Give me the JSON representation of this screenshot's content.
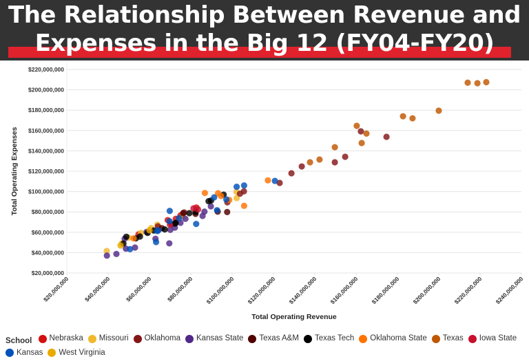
{
  "header": {
    "title_line1": "The Relationship Between Revenue and",
    "title_line2": "Expenses in the Big 12 (FY04-FY20)"
  },
  "chart_data": {
    "type": "scatter",
    "xlabel": "Total Operating Revenue",
    "ylabel": "Total Operating Expenses",
    "xlim": [
      20000000,
      240000000
    ],
    "ylim": [
      20000000,
      220000000
    ],
    "grid": "horizontal",
    "legend_position": "bottom",
    "x_ticks": [
      "$20,000,000",
      "$40,000,000",
      "$60,000,000",
      "$80,000,000",
      "$100,000,000",
      "$120,000,000",
      "$140,000,000",
      "$160,000,000",
      "$180,000,000",
      "$200,000,000",
      "$220,000,000",
      "$240,000,000"
    ],
    "y_ticks": [
      "$20,000,000",
      "$40,000,000",
      "$60,000,000",
      "$80,000,000",
      "$100,000,000",
      "$120,000,000",
      "$140,000,000",
      "$160,000,000",
      "$180,000,000",
      "$200,000,000",
      "$220,000,000"
    ],
    "legend_title": "School",
    "series": [
      {
        "name": "Nebraska",
        "color": "#d40f0f",
        "points": [
          [
            82700000.0,
            84400000.0
          ],
          [
            75000000.0,
            76600000.0
          ],
          [
            72700000.0,
            73200000.0
          ],
          [
            54700000.0,
            58000000.0
          ],
          [
            68800000.0,
            72000000.0
          ]
        ]
      },
      {
        "name": "Missouri",
        "color": "#f1b82d",
        "points": [
          [
            102100000.0,
            99700000.0
          ],
          [
            102200000.0,
            93600000.0
          ],
          [
            76000000.0,
            75400000.0
          ],
          [
            39300000.0,
            41600000.0
          ],
          [
            46600000.0,
            49100000.0
          ],
          [
            49900000.0,
            54700000.0
          ],
          [
            55900000.0,
            59400000.0
          ],
          [
            60800000.0,
            64100000.0
          ],
          [
            63800000.0,
            67500000.0
          ]
        ]
      },
      {
        "name": "Oklahoma",
        "color": "#841617",
        "points": [
          [
            105700000.0,
            100200000.0
          ],
          [
            103800000.0,
            97900000.0
          ],
          [
            97700000.0,
            89400000.0
          ],
          [
            76800000.0,
            79500000.0
          ],
          [
            64100000.0,
            65900000.0
          ],
          [
            70700000.0,
            68000000.0
          ],
          [
            123000000.0,
            108500000.0
          ],
          [
            128700000.0,
            118000000.0
          ],
          [
            133700000.0,
            124700000.0
          ],
          [
            149700000.0,
            128800000.0
          ],
          [
            154700000.0,
            134200000.0
          ],
          [
            162300000.0,
            159200000.0
          ],
          [
            174700000.0,
            153800000.0
          ]
        ]
      },
      {
        "name": "Kansas State",
        "color": "#512888",
        "points": [
          [
            89700000.0,
            85500000.0
          ],
          [
            86600000.0,
            80300000.0
          ],
          [
            85700000.0,
            76100000.0
          ],
          [
            77400000.0,
            73200000.0
          ],
          [
            75000000.0,
            69300000.0
          ],
          [
            72300000.0,
            64600000.0
          ],
          [
            70100000.0,
            62400000.0
          ],
          [
            39400000.0,
            37100000.0
          ],
          [
            44000000.0,
            38700000.0
          ],
          [
            48000000.0,
            53600000.0
          ],
          [
            48600000.0,
            43900000.0
          ],
          [
            53000000.0,
            45000000.0
          ],
          [
            58600000.0,
            60300000.0
          ],
          [
            62900000.0,
            53600000.0
          ],
          [
            69600000.0,
            49100000.0
          ]
        ]
      },
      {
        "name": "Texas A&M",
        "color": "#500000",
        "points": [
          [
            97600000.0,
            79900000.0
          ],
          [
            93000000.0,
            80300000.0
          ],
          [
            82300000.0,
            78100000.0
          ],
          [
            76300000.0,
            78800000.0
          ],
          [
            66000000.0,
            64000000.0
          ]
        ]
      },
      {
        "name": "Texas Tech",
        "color": "#000000",
        "points": [
          [
            95900000.0,
            97000000.0
          ],
          [
            89800000.0,
            91200000.0
          ],
          [
            88600000.0,
            90500000.0
          ],
          [
            82300000.0,
            79900000.0
          ],
          [
            72400000.0,
            68600000.0
          ],
          [
            67400000.0,
            62800000.0
          ],
          [
            47400000.0,
            48900000.0
          ],
          [
            48800000.0,
            55600000.0
          ],
          [
            53400000.0,
            54000000.0
          ],
          [
            55400000.0,
            55800000.0
          ],
          [
            59100000.0,
            59400000.0
          ],
          [
            62100000.0,
            61700000.0
          ],
          [
            79300000.0,
            78800000.0
          ],
          [
            72700000.0,
            69300000.0
          ]
        ]
      },
      {
        "name": "Oklahoma State",
        "color": "#ff7300",
        "points": [
          [
            105800000.0,
            86000000.0
          ],
          [
            86800000.0,
            98600000.0
          ],
          [
            93200000.0,
            98400000.0
          ],
          [
            94600000.0,
            95700000.0
          ],
          [
            98600000.0,
            91800000.0
          ],
          [
            52300000.0,
            54000000.0
          ],
          [
            117300000.0,
            111000000.0
          ]
        ]
      },
      {
        "name": "Texas",
        "color": "#bf5700",
        "points": [
          [
            214000000.0,
            207000000.0
          ],
          [
            218700000.0,
            206500000.0
          ],
          [
            223000000.0,
            207500000.0
          ],
          [
            200000000.0,
            179500000.0
          ],
          [
            182700000.0,
            174000000.0
          ],
          [
            187300000.0,
            172000000.0
          ],
          [
            160300000.0,
            164600000.0
          ],
          [
            165000000.0,
            157000000.0
          ],
          [
            162700000.0,
            147700000.0
          ],
          [
            149700000.0,
            143600000.0
          ],
          [
            142300000.0,
            131500000.0
          ],
          [
            137700000.0,
            128800000.0
          ]
        ]
      },
      {
        "name": "Iowa State",
        "color": "#c8102e",
        "points": [
          [
            81300000.0,
            83500000.0
          ],
          [
            69900000.0,
            67500000.0
          ],
          [
            83500000.0,
            82500000.0
          ]
        ]
      },
      {
        "name": "Kansas",
        "color": "#0051ba",
        "points": [
          [
            102200000.0,
            104700000.0
          ],
          [
            105800000.0,
            106000000.0
          ],
          [
            91300000.0,
            94300000.0
          ],
          [
            97200000.0,
            92300000.0
          ],
          [
            92700000.0,
            81700000.0
          ],
          [
            82600000.0,
            68200000.0
          ],
          [
            69800000.0,
            81000000.0
          ],
          [
            74300000.0,
            73900000.0
          ],
          [
            69700000.0,
            70900000.0
          ],
          [
            64300000.0,
            61900000.0
          ],
          [
            50600000.0,
            43400000.0
          ],
          [
            63800000.0,
            61200000.0
          ],
          [
            63200000.0,
            50400000.0
          ],
          [
            120700000.0,
            110500000.0
          ]
        ]
      },
      {
        "name": "West Virginia",
        "color": "#eaaa00",
        "points": [
          [
            46000000.0,
            47000000.0
          ],
          [
            60000000.0,
            62000000.0
          ]
        ]
      }
    ]
  }
}
